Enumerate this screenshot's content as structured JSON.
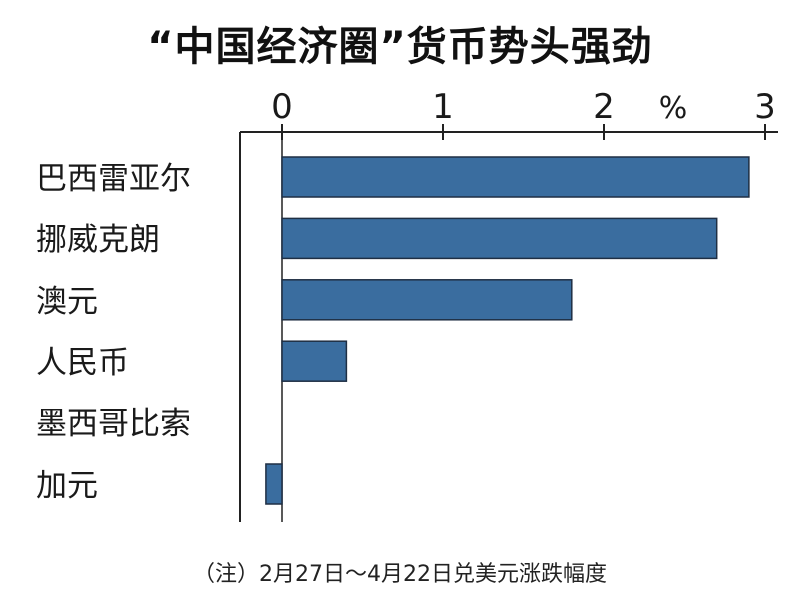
{
  "chart_data": {
    "type": "bar",
    "orientation": "horizontal",
    "title": "“中国经济圈”货币势头强劲",
    "unit": "%",
    "categories": [
      "巴西雷亚尔",
      "挪威克朗",
      "澳元",
      "人民币",
      "墨西哥比索",
      "加元"
    ],
    "values": [
      2.9,
      2.7,
      1.8,
      0.4,
      0.0,
      -0.1
    ],
    "xlim": [
      -0.25,
      3
    ],
    "xticks": [
      "0",
      "1",
      "2",
      "3"
    ],
    "note": "（注）2月27日～4月22日兑美元涨跌幅度",
    "bar_color": "#3a6d9f"
  }
}
